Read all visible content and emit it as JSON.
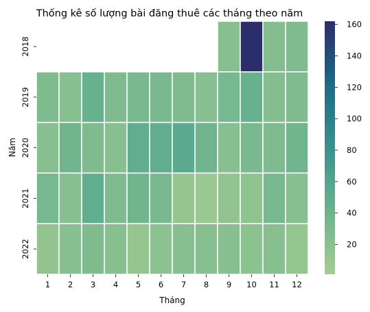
{
  "chart_data": {
    "type": "heatmap",
    "title": "Thống kê số lượng bài đăng thuê các tháng theo năm",
    "xlabel": "Tháng",
    "ylabel": "Năm",
    "x_categories": [
      "1",
      "2",
      "3",
      "4",
      "5",
      "6",
      "7",
      "8",
      "9",
      "10",
      "11",
      "12"
    ],
    "y_categories": [
      "2018",
      "2019",
      "2020",
      "2021",
      "2022"
    ],
    "values": [
      [
        null,
        null,
        null,
        null,
        null,
        null,
        null,
        null,
        25,
        162,
        27,
        30
      ],
      [
        30,
        25,
        45,
        30,
        33,
        33,
        30,
        25,
        35,
        45,
        27,
        30
      ],
      [
        25,
        38,
        30,
        25,
        50,
        50,
        55,
        38,
        25,
        33,
        30,
        38
      ],
      [
        35,
        25,
        50,
        30,
        38,
        33,
        15,
        12,
        18,
        20,
        33,
        25
      ],
      [
        18,
        25,
        30,
        25,
        15,
        22,
        25,
        25,
        25,
        22,
        25,
        15
      ]
    ],
    "colorbar": {
      "min": 1,
      "max": 162,
      "ticks": [
        20,
        40,
        60,
        80,
        100,
        120,
        140,
        160
      ],
      "colormap": "crest"
    },
    "cell_line_color": "#ffffff",
    "grid": false,
    "legend": "colorbar-right"
  }
}
